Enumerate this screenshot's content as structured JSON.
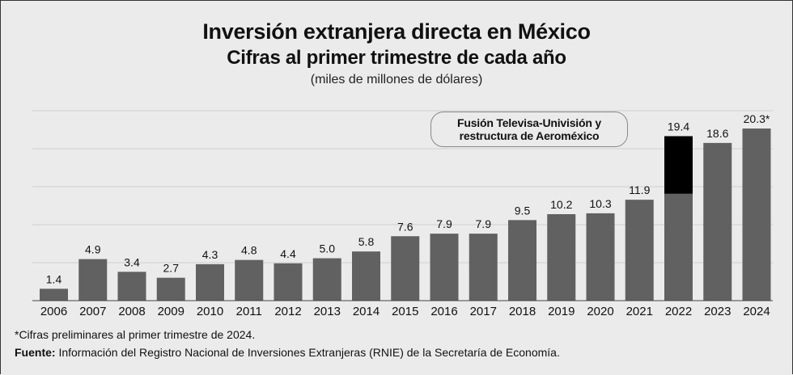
{
  "chart_data": {
    "type": "bar",
    "title": "Inversión extranjera directa en México",
    "subtitle": "Cifras al primer trimestre de cada año",
    "unit_label": "(miles de millones de dólares)",
    "categories": [
      "2006",
      "2007",
      "2008",
      "2009",
      "2010",
      "2011",
      "2012",
      "2013",
      "2014",
      "2015",
      "2016",
      "2017",
      "2018",
      "2019",
      "2020",
      "2021",
      "2022",
      "2023",
      "2024"
    ],
    "values": [
      1.4,
      4.9,
      3.4,
      2.7,
      4.3,
      4.8,
      4.4,
      5.0,
      5.8,
      7.6,
      7.9,
      7.9,
      9.5,
      10.2,
      10.3,
      11.9,
      19.4,
      18.6,
      20.3
    ],
    "data_labels": [
      "1.4",
      "4.9",
      "3.4",
      "2.7",
      "4.3",
      "4.8",
      "4.4",
      "5.0",
      "5.8",
      "7.6",
      "7.9",
      "7.9",
      "9.5",
      "10.2",
      "10.3",
      "11.9",
      "19.4",
      "18.6",
      "20.3*"
    ],
    "highlight": {
      "category": "2022",
      "base_value": 12.6,
      "highlight_value": 6.8,
      "label": "Fusión Televisa-Univisión y restructura de Aeroméxico",
      "color": "#000000"
    },
    "bar_color": "#616161",
    "ylim": [
      0,
      22.4
    ],
    "grid": true,
    "xlabel": "",
    "ylabel": ""
  },
  "legend": {
    "line1": "Fusión Televisa-Univisión y",
    "line2": "restructura de Aeroméxico"
  },
  "footnote": "*Cifras preliminares al primer trimestre de 2024.",
  "source": {
    "label": "Fuente:",
    "text": " Información del Registro Nacional de Inversiones Extranjeras (RNIE) de la Secretaría de Economía."
  }
}
